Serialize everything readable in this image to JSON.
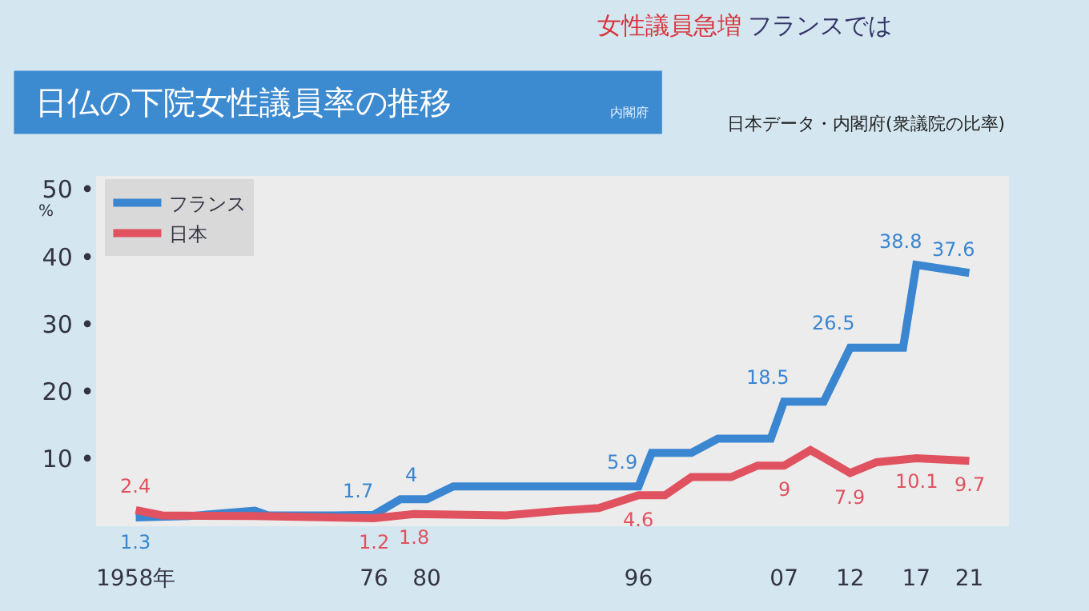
{
  "chart_data": {
    "type": "line",
    "title": "日仏の下院女性議員率の推移",
    "subtitle": "日本データ・内閣府(衆議院の比率)",
    "ylabel": "%",
    "annotations": [
      "女性議員急増",
      "フランスでは",
      "内閣府"
    ],
    "xlim": [
      1955,
      2024
    ],
    "xticks": [
      {
        "value": 1958,
        "label": "1958年"
      },
      {
        "value": 1976,
        "label": "76"
      },
      {
        "value": 1980,
        "label": "80"
      },
      {
        "value": 1996,
        "label": "96"
      },
      {
        "value": 2007,
        "label": "07"
      },
      {
        "value": 2012,
        "label": "12"
      },
      {
        "value": 2017,
        "label": "17"
      },
      {
        "value": 2021,
        "label": "21"
      }
    ],
    "ylim": [
      0,
      52
    ],
    "yticks": [
      {
        "value": 10,
        "label": "10 •"
      },
      {
        "value": 20,
        "label": "20 •"
      },
      {
        "value": 30,
        "label": "30 •"
      },
      {
        "value": 40,
        "label": "40 •"
      },
      {
        "value": 50,
        "label": "50 •"
      }
    ],
    "grid": false,
    "legend": "top left",
    "marker": "none",
    "line_style": "solid",
    "series": [
      {
        "name": "フランス",
        "color": "#3a86d0",
        "x": [
          1958,
          1962,
          1967,
          1968,
          1973,
          1976,
          1978,
          1980,
          1982,
          1996,
          1997,
          2000,
          2002,
          2006,
          2007,
          2010,
          2012,
          2016,
          2017,
          2021
        ],
        "values": [
          1.3,
          1.5,
          2.3,
          1.6,
          1.6,
          1.7,
          4,
          4,
          5.9,
          5.9,
          10.9,
          10.9,
          13,
          13,
          18.5,
          18.5,
          26.5,
          26.5,
          38.8,
          37.6
        ],
        "value_labels": [
          "1.3",
          null,
          null,
          null,
          null,
          "1.7",
          null,
          "4",
          null,
          "5.9",
          null,
          null,
          null,
          null,
          "18.5",
          null,
          "26.5",
          null,
          "38.8",
          "37.6"
        ]
      },
      {
        "name": "日本",
        "color": "#e05260",
        "x": [
          1958,
          1960,
          1967,
          1976,
          1979,
          1986,
          1990,
          1993,
          1996,
          1998,
          2000,
          2003,
          2005,
          2007,
          2009,
          2012,
          2014,
          2017,
          2021
        ],
        "values": [
          2.4,
          1.6,
          1.5,
          1.2,
          1.8,
          1.6,
          2.3,
          2.7,
          4.6,
          4.6,
          7.3,
          7.3,
          9,
          9,
          11.3,
          7.9,
          9.5,
          10.1,
          9.7
        ],
        "value_labels": [
          "2.4",
          null,
          null,
          "1.2",
          "1.8",
          null,
          null,
          null,
          "4.6",
          null,
          null,
          null,
          null,
          "9",
          null,
          "7.9",
          null,
          "10.1",
          "9.7"
        ]
      }
    ]
  }
}
